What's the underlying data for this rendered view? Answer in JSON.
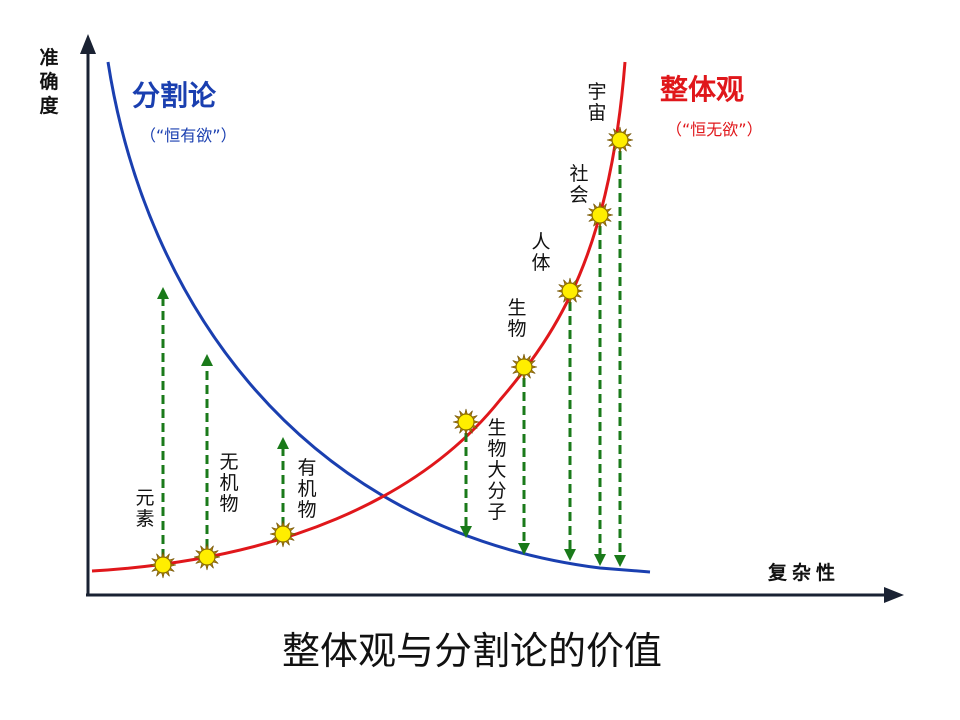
{
  "title": "整体观与分割论的价值",
  "y_axis_label": "准确度",
  "x_axis_label": "复杂性",
  "left_curve": {
    "name": "分割论",
    "note": "（“恒有欲”）",
    "color": "#1a3fb0"
  },
  "right_curve": {
    "name": "整体观",
    "note": "（“恒无欲”）",
    "color": "#e0171b"
  },
  "arrow_color": "#1a7a1a",
  "marker_color": "#ffee00",
  "levels": [
    "元素",
    "无机物",
    "有机物",
    "生物大分子",
    "生物",
    "人体",
    "社会",
    "宇宙"
  ]
}
